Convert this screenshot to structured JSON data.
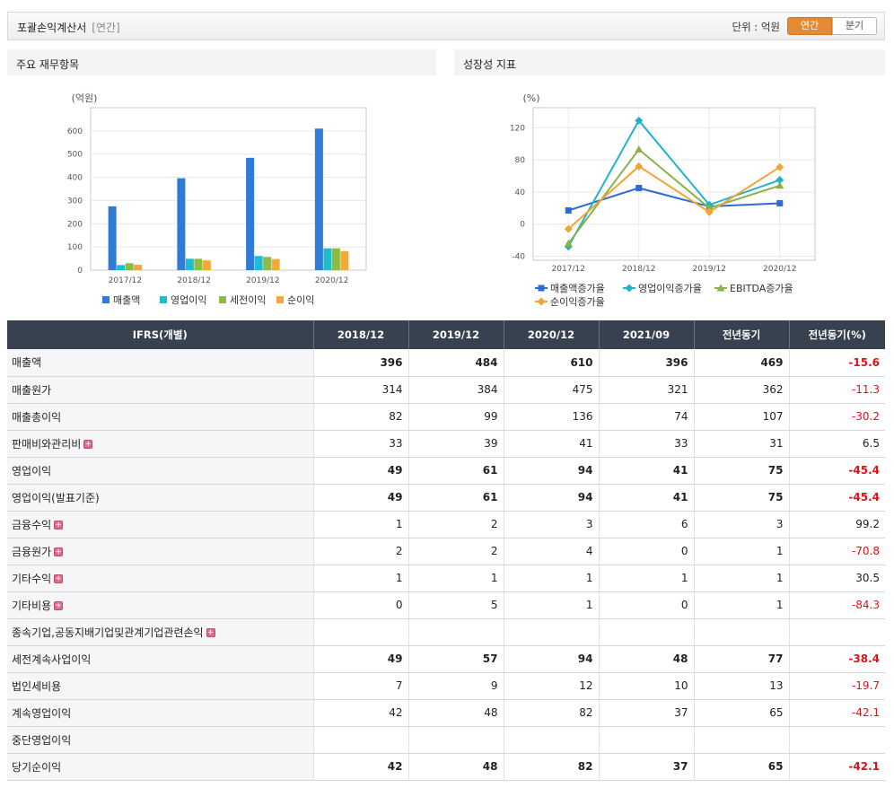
{
  "header": {
    "title": "포괄손익계산서",
    "subtitle": "[연간]",
    "unit": "단위 : 억원",
    "btn_annual": "연간",
    "btn_quarter": "분기"
  },
  "panel1": {
    "title": "주요 재무항목"
  },
  "panel2": {
    "title": "성장성 지표"
  },
  "chart_data": [
    {
      "type": "bar",
      "ylabel": "(억원)",
      "ylim": [
        0,
        700
      ],
      "yticks": [
        0,
        100,
        200,
        300,
        400,
        500,
        600
      ],
      "categories": [
        "2017/12",
        "2018/12",
        "2019/12",
        "2020/12"
      ],
      "series": [
        {
          "name": "매출액",
          "color": "#2e7bd8",
          "values": [
            275,
            396,
            484,
            610
          ]
        },
        {
          "name": "영업이익",
          "color": "#1ebccf",
          "values": [
            22,
            49,
            61,
            94
          ]
        },
        {
          "name": "세전이익",
          "color": "#8cbb48",
          "values": [
            30,
            49,
            57,
            94
          ]
        },
        {
          "name": "순이익",
          "color": "#f2a937",
          "values": [
            23,
            42,
            48,
            82
          ]
        }
      ],
      "grid": true,
      "legend": "bottom"
    },
    {
      "type": "line",
      "ylabel": "(%)",
      "ylim": [
        -45,
        145
      ],
      "yticks": [
        -40,
        0,
        40,
        80,
        120
      ],
      "categories": [
        "2017/12",
        "2018/12",
        "2019/12",
        "2020/12"
      ],
      "series": [
        {
          "name": "매출액증가율",
          "color": "#2d6dd1",
          "marker": "square",
          "values": [
            17,
            45,
            22,
            26
          ]
        },
        {
          "name": "영업이익증가율",
          "color": "#22b3c9",
          "marker": "diamond",
          "values": [
            -28,
            129,
            24,
            55
          ]
        },
        {
          "name": "EBITDA증가율",
          "color": "#8cb04a",
          "marker": "triangle",
          "values": [
            -24,
            93,
            20,
            48
          ]
        },
        {
          "name": "순이익증가율",
          "color": "#f0a535",
          "marker": "diamond",
          "values": [
            -6,
            72,
            15,
            71
          ]
        }
      ],
      "grid": true,
      "legend": "bottom"
    }
  ],
  "table": {
    "columns": [
      "IFRS(개별)",
      "2018/12",
      "2019/12",
      "2020/12",
      "2021/09",
      "전년동기",
      "전년동기(%)"
    ],
    "rows": [
      {
        "label": "매출액",
        "bold": true,
        "expand": false,
        "values": [
          "396",
          "484",
          "610",
          "396",
          "469",
          "-15.6"
        ]
      },
      {
        "label": "매출원가",
        "bold": false,
        "expand": false,
        "values": [
          "314",
          "384",
          "475",
          "321",
          "362",
          "-11.3"
        ]
      },
      {
        "label": "매출총이익",
        "bold": false,
        "expand": false,
        "values": [
          "82",
          "99",
          "136",
          "74",
          "107",
          "-30.2"
        ]
      },
      {
        "label": "판매비와관리비",
        "bold": false,
        "expand": true,
        "values": [
          "33",
          "39",
          "41",
          "33",
          "31",
          "6.5"
        ]
      },
      {
        "label": "영업이익",
        "bold": true,
        "expand": false,
        "values": [
          "49",
          "61",
          "94",
          "41",
          "75",
          "-45.4"
        ]
      },
      {
        "label": "영업이익(발표기준)",
        "bold": true,
        "expand": false,
        "values": [
          "49",
          "61",
          "94",
          "41",
          "75",
          "-45.4"
        ]
      },
      {
        "label": "금융수익",
        "bold": false,
        "expand": true,
        "values": [
          "1",
          "2",
          "3",
          "6",
          "3",
          "99.2"
        ]
      },
      {
        "label": "금융원가",
        "bold": false,
        "expand": true,
        "values": [
          "2",
          "2",
          "4",
          "0",
          "1",
          "-70.8"
        ]
      },
      {
        "label": "기타수익",
        "bold": false,
        "expand": true,
        "values": [
          "1",
          "1",
          "1",
          "1",
          "1",
          "30.5"
        ]
      },
      {
        "label": "기타비용",
        "bold": false,
        "expand": true,
        "values": [
          "0",
          "5",
          "1",
          "0",
          "1",
          "-84.3"
        ]
      },
      {
        "label": "종속기업,공동지배기업및관계기업관련손익",
        "bold": false,
        "expand": true,
        "values": [
          "",
          "",
          "",
          "",
          "",
          ""
        ]
      },
      {
        "label": "세전계속사업이익",
        "bold": true,
        "expand": false,
        "values": [
          "49",
          "57",
          "94",
          "48",
          "77",
          "-38.4"
        ]
      },
      {
        "label": "법인세비용",
        "bold": false,
        "expand": false,
        "values": [
          "7",
          "9",
          "12",
          "10",
          "13",
          "-19.7"
        ]
      },
      {
        "label": "계속영업이익",
        "bold": false,
        "expand": false,
        "values": [
          "42",
          "48",
          "82",
          "37",
          "65",
          "-42.1"
        ]
      },
      {
        "label": "중단영업이익",
        "bold": false,
        "expand": false,
        "values": [
          "",
          "",
          "",
          "",
          "",
          ""
        ]
      },
      {
        "label": "당기순이익",
        "bold": true,
        "expand": false,
        "values": [
          "42",
          "48",
          "82",
          "37",
          "65",
          "-42.1"
        ]
      }
    ]
  }
}
